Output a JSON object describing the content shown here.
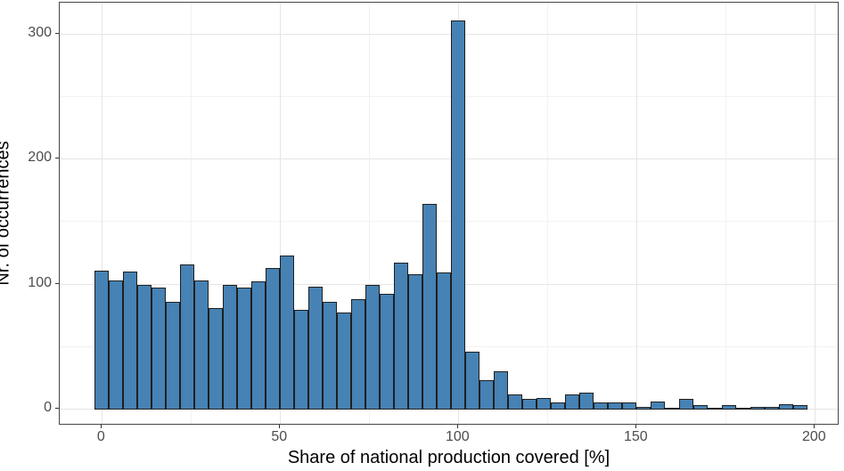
{
  "chart_data": {
    "type": "bar",
    "subtype": "histogram",
    "title": "",
    "xlabel": "Share of national production covered [%]",
    "ylabel": "Nr. of occurrences",
    "x_ticks": [
      0,
      50,
      100,
      150,
      200
    ],
    "y_ticks": [
      0,
      100,
      200,
      300
    ],
    "x_minor_ticks": [
      25,
      75,
      125,
      175
    ],
    "y_minor_ticks": [
      50,
      150,
      250
    ],
    "xlim": [
      -12.3,
      208.3
    ],
    "ylim": [
      -13.5,
      324.8
    ],
    "grid": "on",
    "legend": "none",
    "bin_width": 4,
    "bar_fill_color": "#4682B4",
    "bar_border_color": "#1f1f1f",
    "grid_major_color": "#e5e5e5",
    "grid_minor_color": "#f2f2f2",
    "categories": [
      0,
      4,
      8,
      12,
      16,
      20,
      24,
      28,
      32,
      36,
      40,
      44,
      48,
      52,
      56,
      60,
      64,
      68,
      72,
      76,
      80,
      84,
      88,
      92,
      96,
      100,
      104,
      108,
      112,
      116,
      120,
      124,
      128,
      132,
      136,
      140,
      144,
      148,
      152,
      156,
      160,
      164,
      168,
      172,
      176,
      180,
      184,
      188,
      192,
      196
    ],
    "values": [
      110,
      102,
      109,
      98,
      96,
      85,
      115,
      102,
      80,
      98,
      96,
      101,
      112,
      122,
      78,
      97,
      85,
      76,
      87,
      98,
      91,
      116,
      107,
      163,
      108,
      310,
      45,
      22,
      29,
      11,
      7,
      8,
      4,
      11,
      12,
      4,
      4,
      4,
      1,
      5,
      0,
      7,
      2,
      0,
      2,
      0,
      1,
      1,
      3,
      2
    ]
  }
}
